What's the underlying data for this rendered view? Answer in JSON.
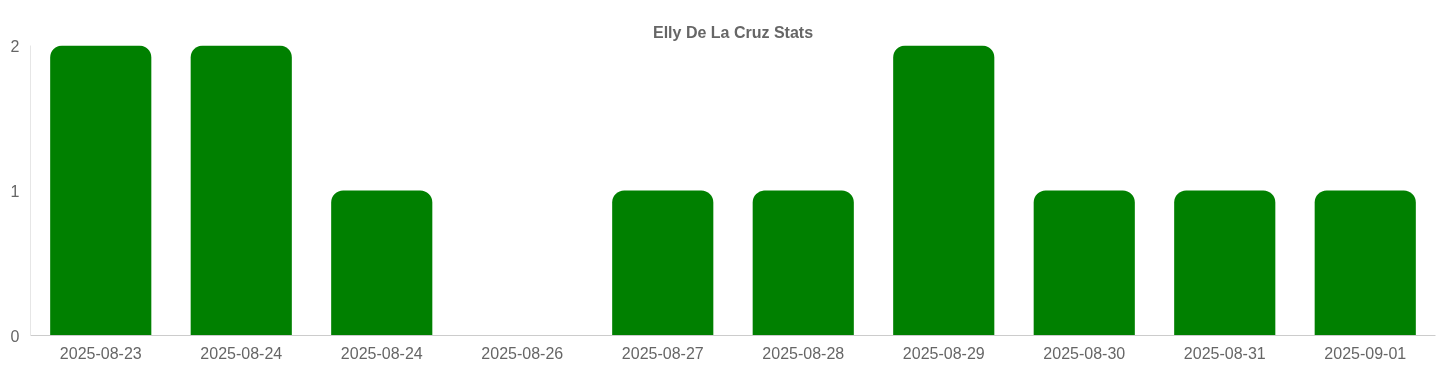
{
  "chart_data": {
    "type": "bar",
    "title": "Elly De La Cruz Stats",
    "categories": [
      "2025-08-23",
      "2025-08-24",
      "2025-08-24",
      "2025-08-26",
      "2025-08-27",
      "2025-08-28",
      "2025-08-29",
      "2025-08-30",
      "2025-08-31",
      "2025-09-01"
    ],
    "values": [
      2,
      2,
      1,
      0,
      1,
      1,
      2,
      1,
      1,
      1
    ],
    "color": "#008000",
    "ylim": [
      0,
      2
    ],
    "yticks": [
      0,
      1,
      2
    ],
    "grid": false
  }
}
